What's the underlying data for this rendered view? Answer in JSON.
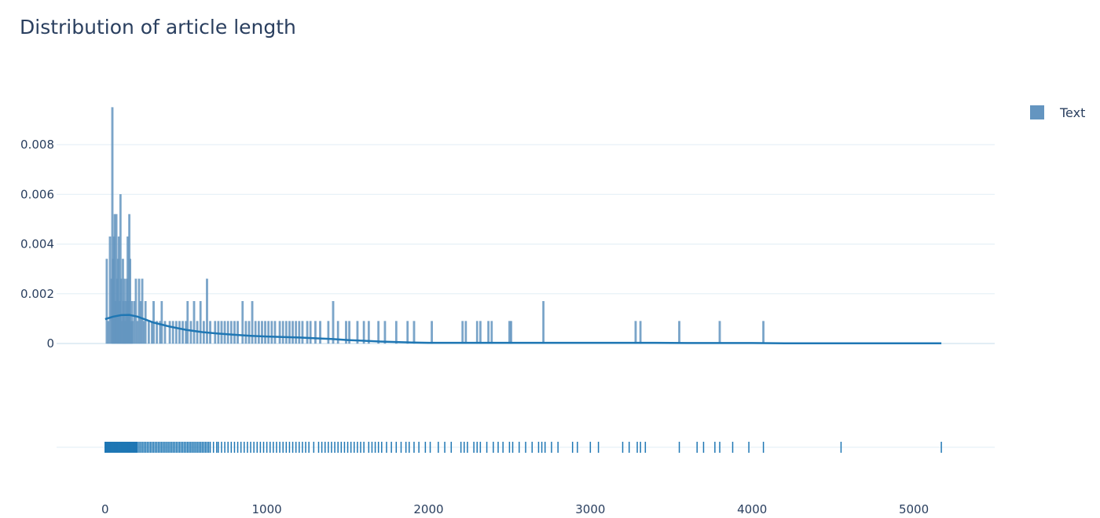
{
  "colors": {
    "series": "#1f77b4",
    "histogram_fill": "#6495c0",
    "grid": "#e2eef5",
    "text": "#2a3f5f"
  },
  "chart_data": {
    "type": "histogram",
    "title": "Distribution of article length",
    "xlabel": "",
    "ylabel": "",
    "xlim": [
      -300,
      5500
    ],
    "ylim": [
      -0.0002,
      0.0098
    ],
    "x_ticks": [
      0,
      1000,
      2000,
      3000,
      4000,
      5000
    ],
    "y_ticks": [
      0,
      0.002,
      0.004,
      0.006,
      0.008
    ],
    "y_tick_labels": [
      "0",
      "0.002",
      "0.004",
      "0.006",
      "0.008"
    ],
    "grid": true,
    "legend": {
      "position": "top-right",
      "entries": [
        "Text"
      ]
    },
    "series": [
      {
        "name": "Text",
        "histogram_bars": [
          [
            10,
            0.0034
          ],
          [
            20,
            0.0009
          ],
          [
            30,
            0.0043
          ],
          [
            40,
            0.0026
          ],
          [
            45,
            0.0095
          ],
          [
            50,
            0.0034
          ],
          [
            55,
            0.0043
          ],
          [
            60,
            0.0052
          ],
          [
            65,
            0.0017
          ],
          [
            70,
            0.0052
          ],
          [
            75,
            0.0026
          ],
          [
            80,
            0.0034
          ],
          [
            85,
            0.0043
          ],
          [
            90,
            0.0017
          ],
          [
            95,
            0.006
          ],
          [
            100,
            0.0026
          ],
          [
            105,
            0.0009
          ],
          [
            110,
            0.0034
          ],
          [
            115,
            0.0017
          ],
          [
            120,
            0.0026
          ],
          [
            125,
            0.0009
          ],
          [
            130,
            0.0017
          ],
          [
            135,
            0.0026
          ],
          [
            140,
            0.0043
          ],
          [
            145,
            0.0017
          ],
          [
            150,
            0.0052
          ],
          [
            155,
            0.0034
          ],
          [
            160,
            0.0009
          ],
          [
            165,
            0.0017
          ],
          [
            170,
            0.0009
          ],
          [
            180,
            0.0017
          ],
          [
            190,
            0.0026
          ],
          [
            200,
            0.0009
          ],
          [
            210,
            0.0026
          ],
          [
            220,
            0.0017
          ],
          [
            230,
            0.0026
          ],
          [
            240,
            0.0009
          ],
          [
            250,
            0.0017
          ],
          [
            270,
            0.0009
          ],
          [
            290,
            0.0009
          ],
          [
            300,
            0.0017
          ],
          [
            320,
            0.0009
          ],
          [
            340,
            0.0009
          ],
          [
            350,
            0.0017
          ],
          [
            370,
            0.0009
          ],
          [
            400,
            0.0009
          ],
          [
            420,
            0.0009
          ],
          [
            440,
            0.0009
          ],
          [
            460,
            0.0009
          ],
          [
            480,
            0.0009
          ],
          [
            500,
            0.0009
          ],
          [
            510,
            0.0017
          ],
          [
            530,
            0.0009
          ],
          [
            550,
            0.0017
          ],
          [
            570,
            0.0009
          ],
          [
            590,
            0.0017
          ],
          [
            610,
            0.0009
          ],
          [
            630,
            0.0026
          ],
          [
            650,
            0.0009
          ],
          [
            680,
            0.0009
          ],
          [
            700,
            0.0009
          ],
          [
            720,
            0.0009
          ],
          [
            740,
            0.0009
          ],
          [
            760,
            0.0009
          ],
          [
            780,
            0.0009
          ],
          [
            800,
            0.0009
          ],
          [
            820,
            0.0009
          ],
          [
            850,
            0.0017
          ],
          [
            870,
            0.0009
          ],
          [
            890,
            0.0009
          ],
          [
            910,
            0.0017
          ],
          [
            930,
            0.0009
          ],
          [
            950,
            0.0009
          ],
          [
            970,
            0.0009
          ],
          [
            990,
            0.0009
          ],
          [
            1010,
            0.0009
          ],
          [
            1030,
            0.0009
          ],
          [
            1050,
            0.0009
          ],
          [
            1080,
            0.0009
          ],
          [
            1100,
            0.0009
          ],
          [
            1120,
            0.0009
          ],
          [
            1140,
            0.0009
          ],
          [
            1160,
            0.0009
          ],
          [
            1180,
            0.0009
          ],
          [
            1200,
            0.0009
          ],
          [
            1220,
            0.0009
          ],
          [
            1250,
            0.0009
          ],
          [
            1270,
            0.0009
          ],
          [
            1300,
            0.0009
          ],
          [
            1330,
            0.0009
          ],
          [
            1380,
            0.0009
          ],
          [
            1410,
            0.0017
          ],
          [
            1440,
            0.0009
          ],
          [
            1490,
            0.0009
          ],
          [
            1510,
            0.0009
          ],
          [
            1560,
            0.0009
          ],
          [
            1600,
            0.0009
          ],
          [
            1630,
            0.0009
          ],
          [
            1690,
            0.0009
          ],
          [
            1730,
            0.0009
          ],
          [
            1800,
            0.0009
          ],
          [
            1870,
            0.0009
          ],
          [
            1910,
            0.0009
          ],
          [
            2020,
            0.0009
          ],
          [
            2210,
            0.0009
          ],
          [
            2230,
            0.0009
          ],
          [
            2300,
            0.0009
          ],
          [
            2320,
            0.0009
          ],
          [
            2370,
            0.0009
          ],
          [
            2390,
            0.0009
          ],
          [
            2500,
            0.0009
          ],
          [
            2510,
            0.0009
          ],
          [
            2710,
            0.0017
          ],
          [
            3280,
            0.0009
          ],
          [
            3310,
            0.0009
          ],
          [
            3550,
            0.0009
          ],
          [
            3800,
            0.0009
          ],
          [
            4070,
            0.0009
          ]
        ],
        "kde_curve": [
          [
            0,
            0.00098
          ],
          [
            50,
            0.00108
          ],
          [
            100,
            0.00114
          ],
          [
            150,
            0.00115
          ],
          [
            200,
            0.00108
          ],
          [
            250,
            0.00096
          ],
          [
            300,
            0.00084
          ],
          [
            400,
            0.00068
          ],
          [
            500,
            0.00055
          ],
          [
            600,
            0.00046
          ],
          [
            700,
            0.0004
          ],
          [
            800,
            0.00035
          ],
          [
            900,
            0.00031
          ],
          [
            1000,
            0.00028
          ],
          [
            1100,
            0.00026
          ],
          [
            1200,
            0.00024
          ],
          [
            1300,
            0.00021
          ],
          [
            1400,
            0.00018
          ],
          [
            1500,
            0.00014
          ],
          [
            1600,
            0.00011
          ],
          [
            1700,
            8e-05
          ],
          [
            1800,
            6e-05
          ],
          [
            1900,
            4e-05
          ],
          [
            2000,
            3e-05
          ],
          [
            2200,
            3e-05
          ],
          [
            2400,
            3e-05
          ],
          [
            2600,
            3e-05
          ],
          [
            2800,
            3e-05
          ],
          [
            3000,
            3e-05
          ],
          [
            3200,
            3e-05
          ],
          [
            3400,
            3e-05
          ],
          [
            3600,
            2e-05
          ],
          [
            3800,
            2e-05
          ],
          [
            4000,
            2e-05
          ],
          [
            4200,
            1e-05
          ],
          [
            4500,
            1e-05
          ],
          [
            4800,
            1e-05
          ],
          [
            5000,
            1e-05
          ],
          [
            5170,
            1e-05
          ]
        ],
        "rug": [
          0,
          5,
          10,
          15,
          20,
          25,
          30,
          35,
          40,
          45,
          50,
          55,
          60,
          65,
          70,
          75,
          80,
          85,
          90,
          95,
          100,
          105,
          110,
          115,
          120,
          125,
          130,
          135,
          140,
          145,
          150,
          155,
          160,
          165,
          170,
          175,
          180,
          185,
          190,
          195,
          200,
          210,
          220,
          230,
          240,
          250,
          260,
          270,
          280,
          290,
          300,
          310,
          320,
          330,
          340,
          350,
          360,
          370,
          380,
          390,
          400,
          410,
          420,
          430,
          440,
          450,
          460,
          470,
          480,
          490,
          500,
          510,
          520,
          530,
          540,
          550,
          560,
          570,
          580,
          590,
          600,
          610,
          620,
          630,
          640,
          650,
          670,
          690,
          700,
          720,
          740,
          760,
          780,
          800,
          820,
          840,
          860,
          880,
          900,
          920,
          940,
          960,
          980,
          1000,
          1020,
          1040,
          1060,
          1080,
          1100,
          1120,
          1140,
          1160,
          1180,
          1200,
          1220,
          1240,
          1260,
          1290,
          1320,
          1340,
          1360,
          1380,
          1400,
          1420,
          1440,
          1460,
          1480,
          1500,
          1520,
          1540,
          1560,
          1580,
          1600,
          1630,
          1650,
          1670,
          1690,
          1710,
          1740,
          1770,
          1800,
          1830,
          1860,
          1880,
          1910,
          1940,
          1980,
          2010,
          2060,
          2100,
          2140,
          2200,
          2220,
          2240,
          2280,
          2300,
          2320,
          2360,
          2400,
          2430,
          2460,
          2500,
          2520,
          2560,
          2600,
          2640,
          2680,
          2700,
          2720,
          2760,
          2800,
          2890,
          2920,
          3000,
          3050,
          3200,
          3240,
          3290,
          3310,
          3340,
          3550,
          3660,
          3700,
          3770,
          3800,
          3880,
          3980,
          4070,
          4550,
          5170
        ]
      }
    ]
  }
}
